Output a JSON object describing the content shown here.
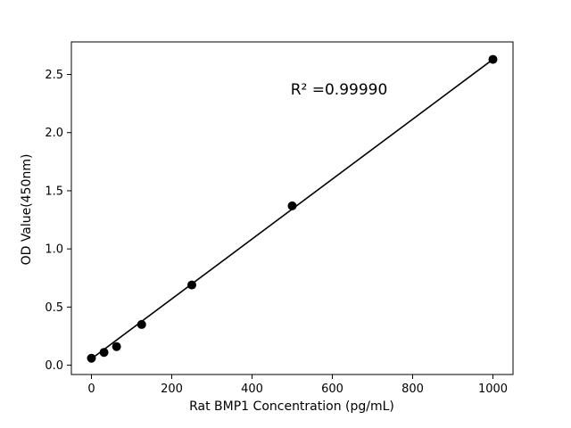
{
  "chart_data": {
    "type": "scatter",
    "title": "",
    "xlabel": "Rat BMP1 Concentration (pg/mL)",
    "ylabel": "OD Value(450nm)",
    "annotation": "R² =0.99990",
    "x": [
      0,
      31.25,
      62.5,
      125,
      250,
      500,
      1000
    ],
    "y": [
      0.06,
      0.11,
      0.16,
      0.35,
      0.69,
      1.37,
      2.63
    ],
    "xlim": [
      -50,
      1050
    ],
    "ylim": [
      -0.08,
      2.78
    ],
    "xticks": [
      0,
      200,
      400,
      600,
      800,
      1000
    ],
    "xtick_labels": [
      "0",
      "200",
      "400",
      "600",
      "800",
      "1000"
    ],
    "yticks": [
      0.0,
      0.5,
      1.0,
      1.5,
      2.0,
      2.5
    ],
    "ytick_labels": [
      "0.0",
      "0.5",
      "1.0",
      "1.5",
      "2.0",
      "2.5"
    ],
    "fit_line": {
      "x1": 0,
      "y1": 0.055,
      "x2": 1000,
      "y2": 2.63
    },
    "marker_color": "#000000",
    "line_color": "#000000",
    "axis_color": "#000000",
    "background": "#ffffff",
    "grid": "off",
    "legend": "none"
  }
}
